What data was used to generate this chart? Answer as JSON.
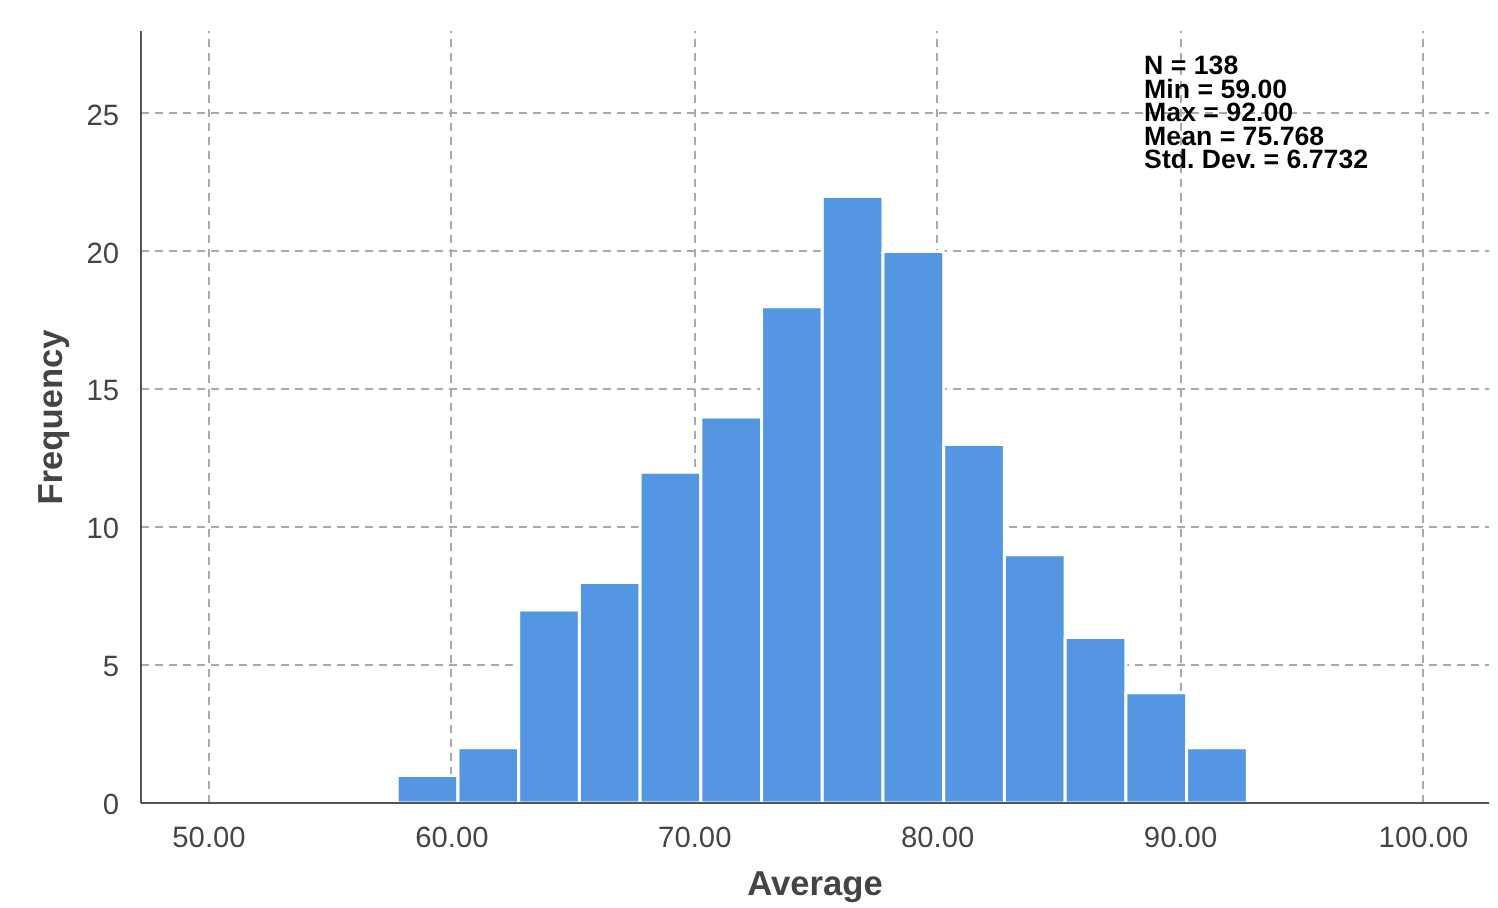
{
  "chart_data": {
    "type": "histogram",
    "xlabel": "Average",
    "ylabel": "Frequency",
    "bins": [
      57.75,
      60.25,
      62.75,
      65.25,
      67.75,
      70.25,
      72.75,
      75.25,
      77.75,
      80.25,
      82.75,
      85.25,
      87.75,
      90.25,
      92.75
    ],
    "values": [
      1,
      2,
      7,
      8,
      12,
      14,
      18,
      22,
      20,
      13,
      9,
      6,
      4,
      2
    ],
    "color": "#5596e3",
    "xlim": [
      47.2,
      102.7
    ],
    "ylim": [
      0,
      28
    ],
    "xticks": [
      {
        "value": 50,
        "label": "50.00"
      },
      {
        "value": 60,
        "label": "60.00"
      },
      {
        "value": 70,
        "label": "70.00"
      },
      {
        "value": 80,
        "label": "80.00"
      },
      {
        "value": 90,
        "label": "90.00"
      },
      {
        "value": 100,
        "label": "100.00"
      }
    ],
    "yticks": [
      0,
      5,
      10,
      15,
      20,
      25
    ],
    "grid": true,
    "annotations": [
      "N = 138",
      "Min = 59.00",
      "Max = 92.00",
      "Mean = 75.768",
      "Std. Dev. = 6.7732"
    ]
  }
}
